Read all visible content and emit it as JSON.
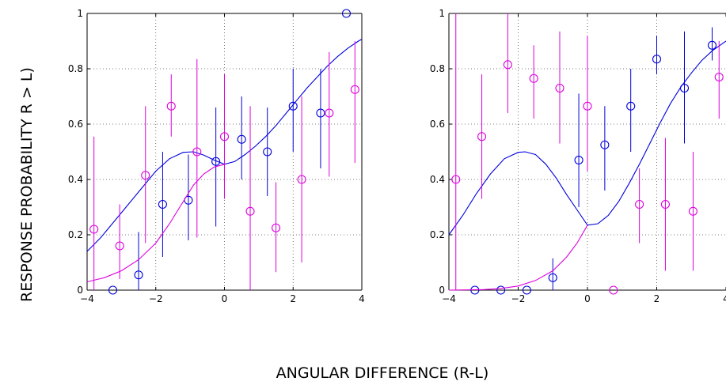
{
  "figure": {
    "ylabel": "RESPONSE PROBABILITY R > L)",
    "xlabel": "ANGULAR DIFFERENCE (R-L)"
  },
  "colors": {
    "blue": "#0000dd",
    "magenta": "#dd00dd",
    "grid": "#555555"
  },
  "chart_data": [
    {
      "type": "scatter",
      "xlim": [
        -4,
        4
      ],
      "ylim": [
        0,
        1
      ],
      "xticks": [
        -4,
        -2,
        0,
        2,
        4
      ],
      "xtick_labels": [
        "−4",
        "−2",
        "0",
        "2",
        "4"
      ],
      "yticks": [
        0,
        0.2,
        0.4,
        0.6,
        0.8,
        1
      ],
      "ytick_labels": [
        "0",
        "0.2",
        "0.4",
        "0.6",
        "0.8",
        "1"
      ],
      "grid": true,
      "series": [
        {
          "color": "blue",
          "points": [
            {
              "x": -3.25,
              "y": 0.0,
              "lo": null,
              "hi": null
            },
            {
              "x": -2.5,
              "y": 0.055,
              "lo": 0.0,
              "hi": 0.21
            },
            {
              "x": -1.8,
              "y": 0.31,
              "lo": 0.12,
              "hi": 0.5
            },
            {
              "x": -1.05,
              "y": 0.325,
              "lo": 0.18,
              "hi": 0.49
            },
            {
              "x": -0.25,
              "y": 0.465,
              "lo": 0.23,
              "hi": 0.66
            },
            {
              "x": 0.5,
              "y": 0.545,
              "lo": 0.4,
              "hi": 0.7
            },
            {
              "x": 1.25,
              "y": 0.5,
              "lo": 0.34,
              "hi": 0.66
            },
            {
              "x": 2.0,
              "y": 0.665,
              "lo": 0.5,
              "hi": 0.8
            },
            {
              "x": 2.8,
              "y": 0.64,
              "lo": 0.44,
              "hi": 0.8
            },
            {
              "x": 3.55,
              "y": 1.0,
              "lo": null,
              "hi": null
            }
          ],
          "curve": [
            [
              -4.0,
              0.14
            ],
            [
              -3.6,
              0.19
            ],
            [
              -3.2,
              0.25
            ],
            [
              -2.8,
              0.31
            ],
            [
              -2.4,
              0.37
            ],
            [
              -2.0,
              0.43
            ],
            [
              -1.6,
              0.475
            ],
            [
              -1.2,
              0.498
            ],
            [
              -0.9,
              0.5
            ],
            [
              -0.6,
              0.488
            ],
            [
              -0.3,
              0.47
            ],
            [
              0,
              0.455
            ],
            [
              0.3,
              0.465
            ],
            [
              0.6,
              0.49
            ],
            [
              0.9,
              0.52
            ],
            [
              1.2,
              0.555
            ],
            [
              1.5,
              0.595
            ],
            [
              1.8,
              0.64
            ],
            [
              2.1,
              0.685
            ],
            [
              2.4,
              0.73
            ],
            [
              2.7,
              0.77
            ],
            [
              3.0,
              0.81
            ],
            [
              3.3,
              0.845
            ],
            [
              3.6,
              0.875
            ],
            [
              3.9,
              0.9
            ],
            [
              4.0,
              0.907
            ]
          ]
        },
        {
          "color": "magenta",
          "points": [
            {
              "x": -3.8,
              "y": 0.22,
              "lo": 0.0,
              "hi": 0.555
            },
            {
              "x": -3.05,
              "y": 0.16,
              "lo": 0.04,
              "hi": 0.31
            },
            {
              "x": -2.3,
              "y": 0.415,
              "lo": 0.17,
              "hi": 0.665
            },
            {
              "x": -1.55,
              "y": 0.665,
              "lo": 0.555,
              "hi": 0.78
            },
            {
              "x": -0.8,
              "y": 0.5,
              "lo": 0.19,
              "hi": 0.835
            },
            {
              "x": 0.0,
              "y": 0.555,
              "lo": 0.33,
              "hi": 0.78
            },
            {
              "x": 0.75,
              "y": 0.285,
              "lo": 0.0,
              "hi": 0.665
            },
            {
              "x": 1.5,
              "y": 0.225,
              "lo": 0.065,
              "hi": 0.39
            },
            {
              "x": 2.25,
              "y": 0.4,
              "lo": 0.1,
              "hi": 0.7
            },
            {
              "x": 3.05,
              "y": 0.64,
              "lo": 0.41,
              "hi": 0.86
            },
            {
              "x": 3.8,
              "y": 0.725,
              "lo": 0.46,
              "hi": 0.9
            }
          ],
          "curve": [
            [
              -4.0,
              0.03
            ],
            [
              -3.5,
              0.045
            ],
            [
              -3.0,
              0.07
            ],
            [
              -2.5,
              0.11
            ],
            [
              -2.0,
              0.17
            ],
            [
              -1.6,
              0.24
            ],
            [
              -1.2,
              0.32
            ],
            [
              -0.9,
              0.38
            ],
            [
              -0.6,
              0.42
            ],
            [
              -0.3,
              0.445
            ],
            [
              0,
              0.455
            ]
          ]
        }
      ]
    },
    {
      "type": "scatter",
      "xlim": [
        -4,
        4
      ],
      "ylim": [
        0,
        1
      ],
      "xticks": [
        -4,
        -2,
        0,
        2,
        4
      ],
      "xtick_labels": [
        "−4",
        "−2",
        "0",
        "2",
        "4"
      ],
      "yticks": [
        0,
        0.2,
        0.4,
        0.6,
        0.8,
        1
      ],
      "ytick_labels": [
        "0",
        "0.2",
        "0.4",
        "0.6",
        "0.8",
        "1"
      ],
      "grid": true,
      "series": [
        {
          "color": "blue",
          "points": [
            {
              "x": -3.25,
              "y": 0.0,
              "lo": null,
              "hi": null
            },
            {
              "x": -2.5,
              "y": 0.0,
              "lo": null,
              "hi": null
            },
            {
              "x": -1.75,
              "y": 0.0,
              "lo": null,
              "hi": null
            },
            {
              "x": -1.0,
              "y": 0.045,
              "lo": 0.0,
              "hi": 0.115
            },
            {
              "x": -0.25,
              "y": 0.47,
              "lo": 0.3,
              "hi": 0.71
            },
            {
              "x": 0.5,
              "y": 0.525,
              "lo": 0.36,
              "hi": 0.665
            },
            {
              "x": 1.25,
              "y": 0.665,
              "lo": 0.5,
              "hi": 0.8
            },
            {
              "x": 2.0,
              "y": 0.835,
              "lo": 0.78,
              "hi": 0.92
            },
            {
              "x": 2.8,
              "y": 0.73,
              "lo": 0.53,
              "hi": 0.935
            },
            {
              "x": 3.6,
              "y": 0.885,
              "lo": 0.83,
              "hi": 0.95
            }
          ],
          "curve": [
            [
              -4.0,
              0.2
            ],
            [
              -3.6,
              0.27
            ],
            [
              -3.2,
              0.35
            ],
            [
              -2.8,
              0.42
            ],
            [
              -2.4,
              0.475
            ],
            [
              -2.0,
              0.498
            ],
            [
              -1.8,
              0.5
            ],
            [
              -1.5,
              0.49
            ],
            [
              -1.2,
              0.455
            ],
            [
              -0.9,
              0.405
            ],
            [
              -0.6,
              0.345
            ],
            [
              -0.3,
              0.29
            ],
            [
              0,
              0.235
            ],
            [
              0.3,
              0.24
            ],
            [
              0.6,
              0.27
            ],
            [
              0.9,
              0.32
            ],
            [
              1.2,
              0.385
            ],
            [
              1.5,
              0.455
            ],
            [
              1.8,
              0.53
            ],
            [
              2.1,
              0.605
            ],
            [
              2.4,
              0.675
            ],
            [
              2.7,
              0.735
            ],
            [
              3.0,
              0.785
            ],
            [
              3.3,
              0.83
            ],
            [
              3.6,
              0.865
            ],
            [
              4.0,
              0.9
            ]
          ]
        },
        {
          "color": "magenta",
          "points": [
            {
              "x": -3.8,
              "y": 0.4,
              "lo": 0.0,
              "hi": 1.0
            },
            {
              "x": -3.05,
              "y": 0.555,
              "lo": 0.33,
              "hi": 0.78
            },
            {
              "x": -2.3,
              "y": 0.815,
              "lo": 0.64,
              "hi": 1.0
            },
            {
              "x": -1.55,
              "y": 0.765,
              "lo": 0.62,
              "hi": 0.885
            },
            {
              "x": -0.8,
              "y": 0.73,
              "lo": 0.53,
              "hi": 0.935
            },
            {
              "x": 0.0,
              "y": 0.665,
              "lo": 0.43,
              "hi": 0.92
            },
            {
              "x": 0.75,
              "y": 0.0,
              "lo": null,
              "hi": null
            },
            {
              "x": 1.5,
              "y": 0.31,
              "lo": 0.17,
              "hi": 0.44
            },
            {
              "x": 2.25,
              "y": 0.31,
              "lo": 0.07,
              "hi": 0.55
            },
            {
              "x": 3.05,
              "y": 0.285,
              "lo": 0.07,
              "hi": 0.5
            },
            {
              "x": 3.8,
              "y": 0.77,
              "lo": 0.62,
              "hi": 0.9
            }
          ],
          "curve": [
            [
              -4.0,
              0.0
            ],
            [
              -3.0,
              0.002
            ],
            [
              -2.5,
              0.006
            ],
            [
              -2.0,
              0.015
            ],
            [
              -1.5,
              0.035
            ],
            [
              -1.0,
              0.07
            ],
            [
              -0.6,
              0.12
            ],
            [
              -0.3,
              0.17
            ],
            [
              0,
              0.235
            ]
          ]
        }
      ]
    }
  ]
}
